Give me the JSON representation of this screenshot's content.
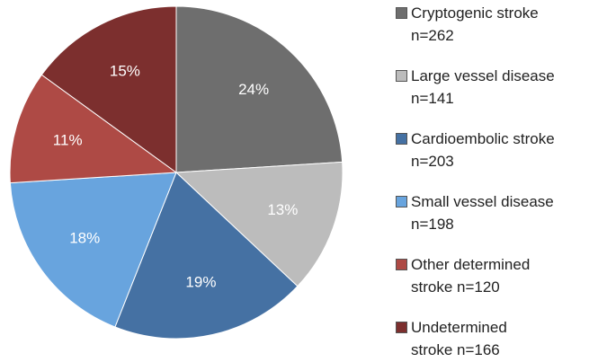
{
  "chart_data": {
    "type": "pie",
    "series": [
      {
        "name": "Cryptogenic stroke\nn=262",
        "color": "#6e6e6e",
        "values": [
          24
        ],
        "value_labels": [
          "24%"
        ]
      },
      {
        "name": "Large vessel disease\nn=141",
        "color": "#bcbcbc",
        "values": [
          13
        ],
        "value_labels": [
          "13%"
        ]
      },
      {
        "name": "Cardioembolic stroke\nn=203",
        "color": "#4571a3",
        "values": [
          19
        ],
        "value_labels": [
          "19%"
        ]
      },
      {
        "name": "Small vessel disease\nn=198",
        "color": "#68a4de",
        "values": [
          18
        ],
        "value_labels": [
          "18%"
        ]
      },
      {
        "name": "Other determined\nstroke n=120",
        "color": "#ae4a45",
        "values": [
          11
        ],
        "value_labels": [
          "11%"
        ]
      },
      {
        "name": "Undetermined\nstroke n=166",
        "color": "#7c2f2e",
        "values": [
          15
        ],
        "value_labels": [
          "15%"
        ]
      }
    ]
  }
}
